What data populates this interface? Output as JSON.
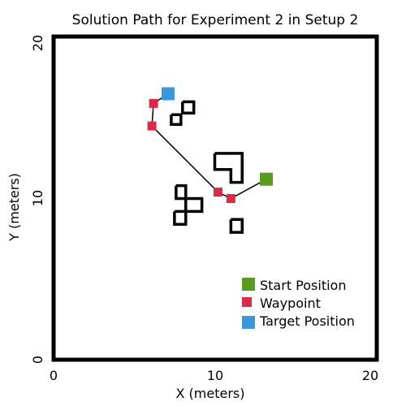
{
  "chart_data": {
    "type": "scatter",
    "title": "Solution Path for Experiment 2 in Setup 2",
    "xlabel": "X (meters)",
    "ylabel": "Y (meters)",
    "xlim": [
      0,
      20
    ],
    "ylim": [
      0,
      20
    ],
    "x_ticks": [
      "0",
      "10",
      "20"
    ],
    "y_ticks": [
      "0",
      "10",
      "20"
    ],
    "grid": false,
    "legend_position": "bottom-right",
    "colors": {
      "start": "#5a9a22",
      "waypoint": "#d92b47",
      "target": "#3a98db",
      "path": "#000000",
      "obstacle": "#000000"
    },
    "legend": [
      {
        "label": "Start Position",
        "series": "start"
      },
      {
        "label": "Waypoint",
        "series": "waypoint"
      },
      {
        "label": "Target Position",
        "series": "target"
      }
    ],
    "series": [
      {
        "name": "Start Position",
        "key": "start",
        "points": [
          [
            13.2,
            11.2
          ]
        ]
      },
      {
        "name": "Waypoint",
        "key": "waypoint",
        "points": [
          [
            6.2,
            15.9
          ],
          [
            6.1,
            14.5
          ],
          [
            10.2,
            10.4
          ],
          [
            11.0,
            10.0
          ]
        ]
      },
      {
        "name": "Target Position",
        "key": "target",
        "points": [
          [
            7.1,
            16.5
          ]
        ]
      }
    ],
    "path": [
      [
        13.2,
        11.2
      ],
      [
        11.0,
        10.0
      ],
      [
        10.2,
        10.4
      ],
      [
        6.1,
        14.5
      ],
      [
        6.2,
        15.9
      ],
      [
        7.1,
        16.5
      ]
    ],
    "obstacles": [
      [
        [
          8.0,
          16.0
        ],
        [
          8.7,
          16.0
        ],
        [
          8.7,
          15.3
        ],
        [
          8.0,
          15.3
        ],
        [
          8.0,
          16.0
        ]
      ],
      [
        [
          7.3,
          15.2
        ],
        [
          7.9,
          15.2
        ],
        [
          7.9,
          14.6
        ],
        [
          7.3,
          14.6
        ],
        [
          7.3,
          15.2
        ]
      ],
      [
        [
          10.0,
          12.8
        ],
        [
          11.7,
          12.8
        ],
        [
          11.7,
          11.0
        ],
        [
          11.0,
          11.0
        ],
        [
          11.0,
          11.8
        ],
        [
          10.0,
          11.8
        ],
        [
          10.0,
          12.8
        ]
      ],
      [
        [
          7.6,
          10.8
        ],
        [
          8.2,
          10.8
        ],
        [
          8.2,
          10.0
        ],
        [
          7.6,
          10.0
        ],
        [
          7.6,
          10.8
        ]
      ],
      [
        [
          8.2,
          10.0
        ],
        [
          9.2,
          10.0
        ],
        [
          9.2,
          9.2
        ],
        [
          8.2,
          9.2
        ],
        [
          8.2,
          10.0
        ]
      ],
      [
        [
          7.5,
          9.2
        ],
        [
          8.2,
          9.2
        ],
        [
          8.2,
          8.4
        ],
        [
          7.5,
          8.4
        ],
        [
          7.5,
          9.2
        ]
      ],
      [
        [
          11.0,
          8.7
        ],
        [
          11.7,
          8.7
        ],
        [
          11.7,
          7.9
        ],
        [
          11.0,
          7.9
        ],
        [
          11.0,
          8.7
        ]
      ]
    ]
  }
}
